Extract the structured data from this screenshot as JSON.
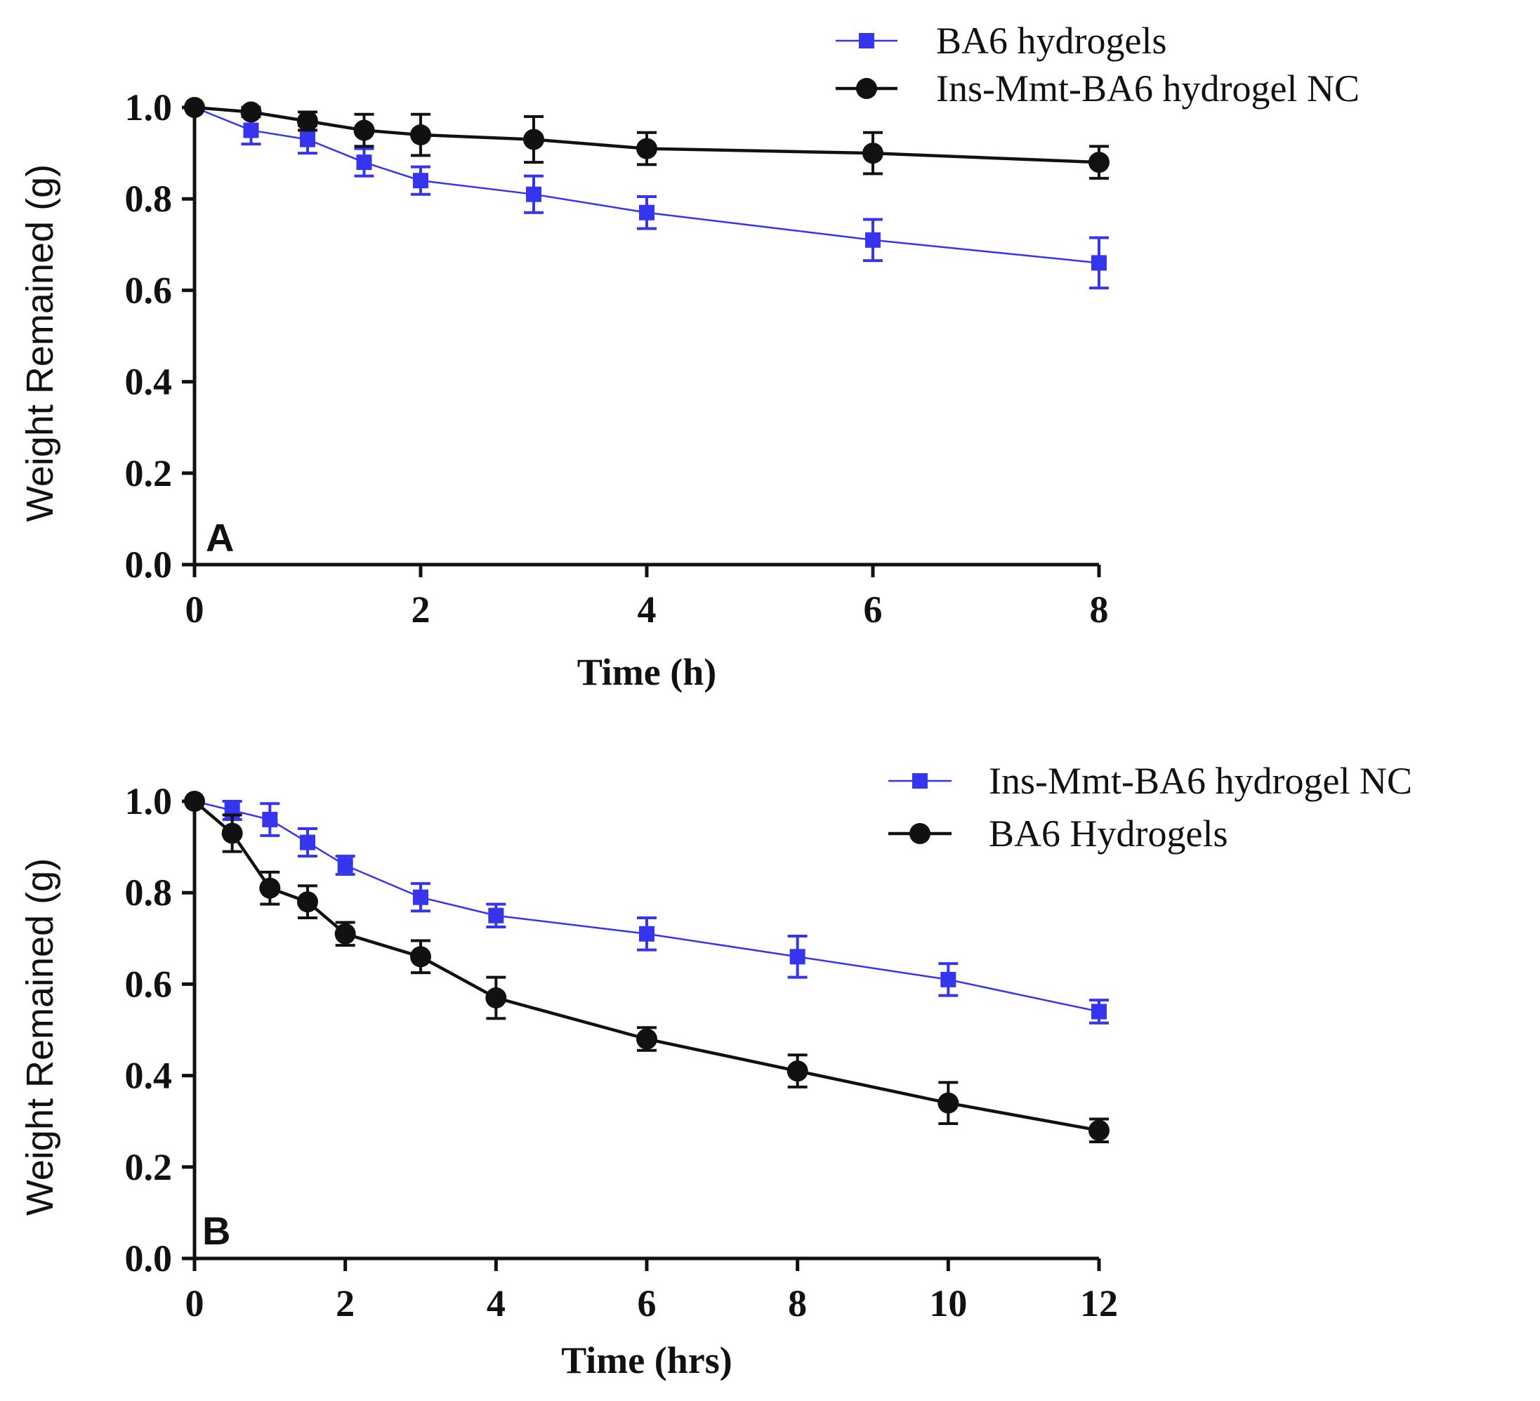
{
  "figure": "weight-remained-degradation",
  "chart_data": [
    {
      "type": "line",
      "panel_label": "A",
      "xlabel": "Time (h)",
      "ylabel": "Weight Remained (g)",
      "xlim": [
        0,
        8
      ],
      "ylim": [
        0,
        1.0
      ],
      "xticks": [
        "0",
        "2",
        "4",
        "6",
        "8"
      ],
      "yticks": [
        "0.0",
        "0.2",
        "0.4",
        "0.6",
        "0.8",
        "1.0"
      ],
      "legend_position": "top-right",
      "series": [
        {
          "name": "BA6 hydrogels",
          "color": "#3535f0",
          "marker": "square",
          "x": [
            0,
            0.5,
            1,
            1.5,
            2,
            3,
            4,
            6,
            8
          ],
          "y": [
            1.0,
            0.95,
            0.93,
            0.88,
            0.84,
            0.81,
            0.77,
            0.71,
            0.66
          ],
          "err": [
            0,
            0.03,
            0.03,
            0.03,
            0.03,
            0.04,
            0.035,
            0.045,
            0.055
          ]
        },
        {
          "name": "Ins-Mmt-BA6 hydrogel NC",
          "color": "#111111",
          "marker": "circle",
          "x": [
            0,
            0.5,
            1,
            1.5,
            2,
            3,
            4,
            6,
            8
          ],
          "y": [
            1.0,
            0.99,
            0.97,
            0.95,
            0.94,
            0.93,
            0.91,
            0.9,
            0.88
          ],
          "err": [
            0,
            0.01,
            0.02,
            0.035,
            0.045,
            0.05,
            0.035,
            0.045,
            0.035
          ]
        }
      ]
    },
    {
      "type": "line",
      "panel_label": "B",
      "xlabel": "Time (hrs)",
      "ylabel": "Weight Remained (g)",
      "xlim": [
        0,
        12
      ],
      "ylim": [
        0,
        1.0
      ],
      "xticks": [
        "0",
        "2",
        "4",
        "6",
        "8",
        "10",
        "12"
      ],
      "yticks": [
        "0.0",
        "0.2",
        "0.4",
        "0.6",
        "0.8",
        "1.0"
      ],
      "legend_position": "top-right",
      "series": [
        {
          "name": "Ins-Mmt-BA6 hydrogel NC",
          "color": "#3535f0",
          "marker": "square",
          "x": [
            0,
            0.5,
            1,
            1.5,
            2,
            3,
            4,
            6,
            8,
            10,
            12
          ],
          "y": [
            1.0,
            0.98,
            0.96,
            0.91,
            0.86,
            0.79,
            0.75,
            0.71,
            0.66,
            0.61,
            0.54
          ],
          "err": [
            0,
            0.02,
            0.035,
            0.03,
            0.02,
            0.03,
            0.025,
            0.035,
            0.045,
            0.035,
            0.025
          ]
        },
        {
          "name": "BA6 Hydrogels",
          "color": "#111111",
          "marker": "circle",
          "x": [
            0,
            0.5,
            1,
            1.5,
            2,
            3,
            4,
            6,
            8,
            10,
            12
          ],
          "y": [
            1.0,
            0.93,
            0.81,
            0.78,
            0.71,
            0.66,
            0.57,
            0.48,
            0.41,
            0.34,
            0.28
          ],
          "err": [
            0,
            0.04,
            0.035,
            0.035,
            0.025,
            0.035,
            0.045,
            0.025,
            0.035,
            0.045,
            0.025
          ]
        }
      ]
    }
  ]
}
